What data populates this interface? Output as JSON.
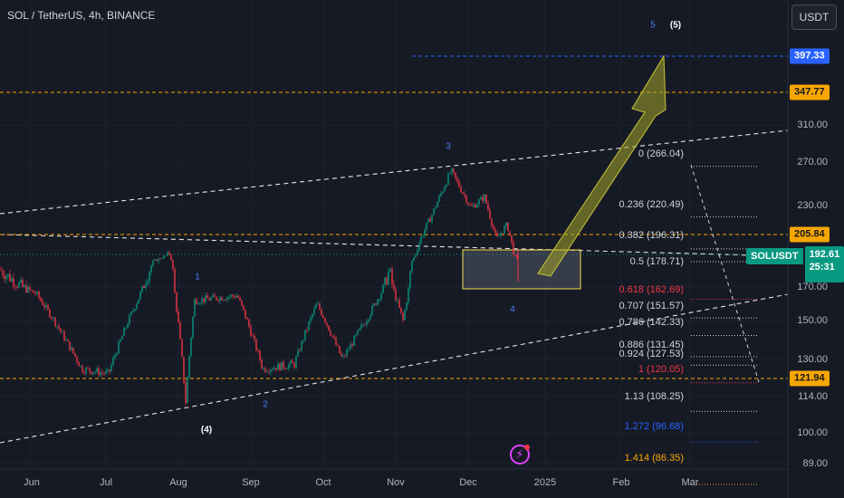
{
  "header": {
    "symbol_title": "SOL / TetherUS, 4h, BINANCE",
    "currency_button": "USDT"
  },
  "chart_data": {
    "type": "candlestick",
    "title": "SOL / TetherUS, 4h, BINANCE",
    "x_axis_labels": [
      "Jun",
      "Jul",
      "Aug",
      "Sep",
      "Oct",
      "Nov",
      "Dec",
      "2025",
      "Feb",
      "Mar"
    ],
    "y_axis_ticks": [
      89.0,
      100.0,
      114.0,
      130.0,
      150.0,
      170.0,
      230.0,
      270.0,
      310.0
    ],
    "ylim": [
      85,
      420
    ],
    "price_chips": [
      {
        "label": "397.33",
        "value": 397.33,
        "color": "#2962ff",
        "text_color": "#ffffff"
      },
      {
        "label": "347.77",
        "value": 347.77,
        "color": "#f7a600",
        "text_color": "#131722"
      },
      {
        "label": "205.84",
        "value": 205.84,
        "color": "#f7a600",
        "text_color": "#131722"
      },
      {
        "label": "121.94",
        "value": 121.94,
        "color": "#f7a600",
        "text_color": "#131722"
      }
    ],
    "current_price": {
      "symbol": "SOLUSDT",
      "price": "192.61",
      "countdown": "25:31",
      "value": 192.61,
      "color": "#089981"
    },
    "fib_levels": [
      {
        "label": "0 (266.04)",
        "value": 266.04,
        "color": "#d1d4dc"
      },
      {
        "label": "0.236 (220.49)",
        "value": 220.49,
        "color": "#d1d4dc"
      },
      {
        "label": "0.382 (196.31)",
        "value": 196.31,
        "color": "#d1d4dc"
      },
      {
        "label": "0.5 (178.71)",
        "value": 178.71,
        "color": "#d1d4dc"
      },
      {
        "label": "0.618 (162.69)",
        "value": 162.69,
        "color": "#f23645"
      },
      {
        "label": "0.707 (151.57)",
        "value": 151.57,
        "color": "#d1d4dc"
      },
      {
        "label": "0.786 (142.33)",
        "value": 142.33,
        "color": "#d1d4dc"
      },
      {
        "label": "0.886 (131.45)",
        "value": 131.45,
        "color": "#d1d4dc"
      },
      {
        "label": "0.924 (127.53)",
        "value": 127.53,
        "color": "#d1d4dc"
      },
      {
        "label": "1 (120.05)",
        "value": 120.05,
        "color": "#f23645"
      },
      {
        "label": "1.13 (108.25)",
        "value": 108.25,
        "color": "#d1d4dc"
      },
      {
        "label": "1.272 (96.68)",
        "value": 96.68,
        "color": "#2962ff"
      },
      {
        "label": "1.414 (86.35)",
        "value": 86.35,
        "color": "#f7a600"
      }
    ],
    "wave_labels": [
      {
        "text": "1",
        "major": false
      },
      {
        "text": "2",
        "major": false
      },
      {
        "text": "3",
        "major": false
      },
      {
        "text": "4",
        "major": false
      },
      {
        "text": "5",
        "major": false
      },
      {
        "text": "(4)",
        "major": true
      },
      {
        "text": "(5)",
        "major": true
      }
    ],
    "demand_zone": {
      "top": 192,
      "bottom": 165
    },
    "colors": {
      "up": "#089981",
      "down": "#f23645",
      "orange": "#f7a600",
      "blue": "#2962ff",
      "arrow": "#a4a62a"
    }
  }
}
